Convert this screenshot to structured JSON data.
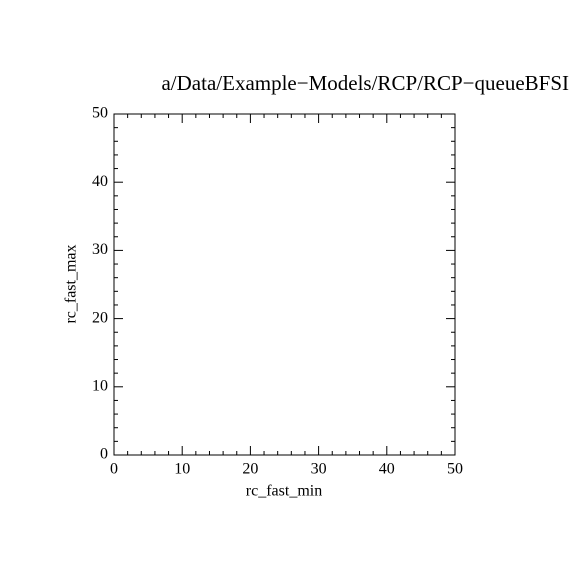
{
  "chart_data": {
    "type": "scatter",
    "title": "a/Data/Example−Models/RCP/RCP−queueBFSI",
    "x_label": "rc_fast_min",
    "y_label": "rc_fast_max",
    "x": [],
    "y": [],
    "xlim": [
      0,
      50
    ],
    "ylim": [
      0,
      50
    ],
    "xticks": [
      0,
      10,
      20,
      30,
      40,
      50
    ],
    "yticks": [
      0,
      10,
      20,
      30,
      40,
      50
    ],
    "color": "#000000"
  }
}
